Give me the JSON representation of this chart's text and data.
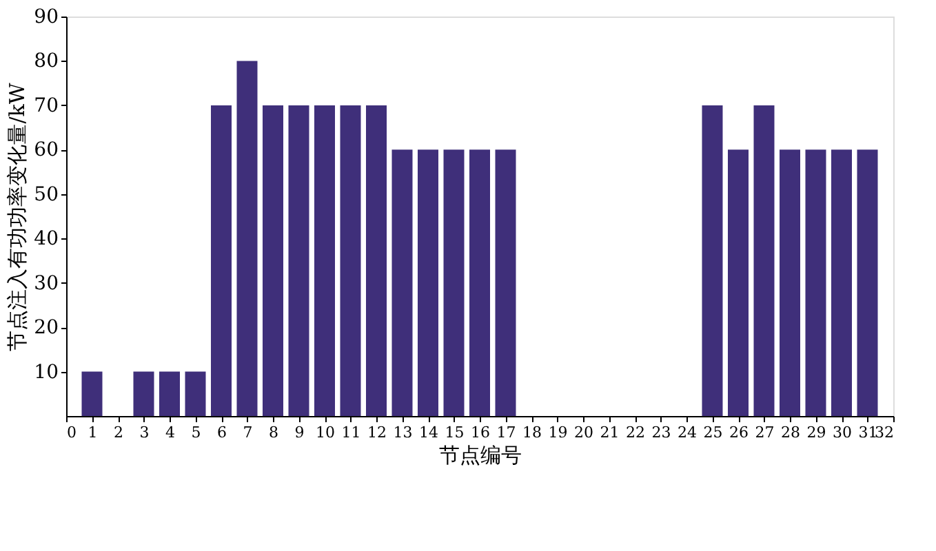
{
  "chart_data": {
    "type": "bar",
    "xlabel": "节点编号",
    "ylabel": "节点注入有功功率变化量/kW",
    "x": [
      1,
      2,
      3,
      4,
      5,
      6,
      7,
      8,
      9,
      10,
      11,
      12,
      13,
      14,
      15,
      16,
      17,
      18,
      19,
      20,
      21,
      22,
      23,
      24,
      25,
      26,
      27,
      28,
      29,
      30,
      31
    ],
    "values": [
      10,
      null,
      10,
      10,
      10,
      70,
      80,
      70,
      70,
      70,
      70,
      70,
      60,
      60,
      60,
      60,
      60,
      null,
      null,
      null,
      null,
      null,
      null,
      null,
      70,
      60,
      70,
      60,
      60,
      60,
      60
    ],
    "color": "#3f2f7a",
    "xlim": [
      0,
      32
    ],
    "xticks": [
      0,
      1,
      2,
      3,
      4,
      5,
      6,
      7,
      8,
      9,
      10,
      11,
      12,
      13,
      14,
      15,
      16,
      17,
      18,
      19,
      20,
      21,
      22,
      23,
      24,
      25,
      26,
      27,
      28,
      29,
      30,
      31,
      32
    ],
    "ylim": [
      0,
      90
    ],
    "yticks": [
      10,
      20,
      30,
      40,
      50,
      60,
      70,
      80,
      90
    ],
    "grid": false
  }
}
